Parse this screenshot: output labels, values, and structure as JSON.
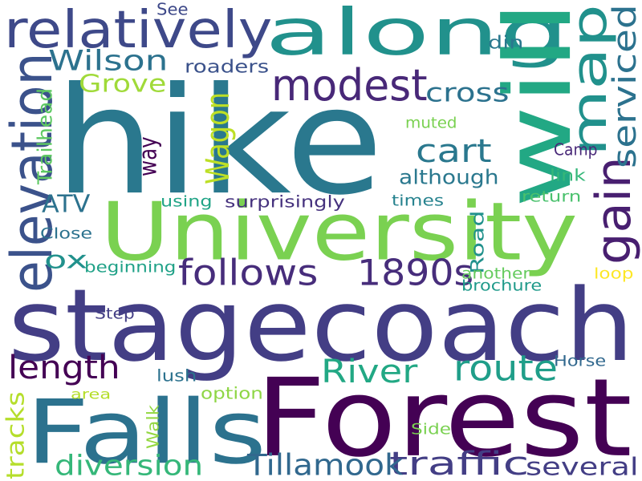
{
  "words": [
    {
      "text": "hike",
      "color": "#2a788e"
    },
    {
      "text": "stagecoach",
      "color": "#433e85"
    },
    {
      "text": "Forest",
      "color": "#440154"
    },
    {
      "text": "University",
      "color": "#7ad151"
    },
    {
      "text": "Falls",
      "color": "#2c728e"
    },
    {
      "text": "along",
      "color": "#21918c"
    },
    {
      "text": "will",
      "color": "#22a884"
    },
    {
      "text": "map",
      "color": "#21918c"
    },
    {
      "text": "relatively",
      "color": "#3e4989"
    },
    {
      "text": "elevation",
      "color": "#3b528b"
    },
    {
      "text": "modest",
      "color": "#482878"
    },
    {
      "text": "follows",
      "color": "#472d7b"
    },
    {
      "text": "1890s",
      "color": "#472d7b"
    },
    {
      "text": "gain",
      "color": "#481f70"
    },
    {
      "text": "length",
      "color": "#440154"
    },
    {
      "text": "route",
      "color": "#1f9e89"
    },
    {
      "text": "River",
      "color": "#22a884"
    },
    {
      "text": "traffic",
      "color": "#433e85"
    },
    {
      "text": "Tillamook",
      "color": "#31688e"
    },
    {
      "text": "serviced",
      "color": "#2c728e"
    },
    {
      "text": "Wagon",
      "color": "#bddf26"
    },
    {
      "text": "Wilson",
      "color": "#2c728e"
    },
    {
      "text": "cart",
      "color": "#2a788e"
    },
    {
      "text": "diversion",
      "color": "#35b779"
    },
    {
      "text": "several",
      "color": "#433e85"
    },
    {
      "text": "Grove",
      "color": "#a0da39"
    },
    {
      "text": "cross",
      "color": "#2c728e"
    },
    {
      "text": "ox",
      "color": "#21918c"
    },
    {
      "text": "way",
      "color": "#440154"
    },
    {
      "text": "ATV",
      "color": "#2c728e"
    },
    {
      "text": "tracks",
      "color": "#b5de2b"
    },
    {
      "text": "although",
      "color": "#2a788e"
    },
    {
      "text": "roaders",
      "color": "#3b528b"
    },
    {
      "text": "din",
      "color": "#2a788e"
    },
    {
      "text": "See",
      "color": "#3e4989"
    },
    {
      "text": "Trailhead",
      "color": "#5ec962"
    },
    {
      "text": "muted",
      "color": "#7ad151"
    },
    {
      "text": "Camp",
      "color": "#482878"
    },
    {
      "text": "link",
      "color": "#35b779"
    },
    {
      "text": "return",
      "color": "#4ac16d"
    },
    {
      "text": "times",
      "color": "#26828e"
    },
    {
      "text": "using",
      "color": "#20a486"
    },
    {
      "text": "surprisingly",
      "color": "#46327e"
    },
    {
      "text": "Close",
      "color": "#2c728e"
    },
    {
      "text": "Road",
      "color": "#21918c"
    },
    {
      "text": "beginning",
      "color": "#1fa187"
    },
    {
      "text": "another",
      "color": "#65cb5e"
    },
    {
      "text": "loop",
      "color": "#fde725"
    },
    {
      "text": "brochure",
      "color": "#1f9a8a"
    },
    {
      "text": "Step",
      "color": "#433e85"
    },
    {
      "text": "Horse",
      "color": "#31688e"
    },
    {
      "text": "lush",
      "color": "#2c728e"
    },
    {
      "text": "area",
      "color": "#b5de2b"
    },
    {
      "text": "option",
      "color": "#8ed645"
    },
    {
      "text": "Walk",
      "color": "#93d741"
    },
    {
      "text": "Side",
      "color": "#7ad151"
    }
  ]
}
